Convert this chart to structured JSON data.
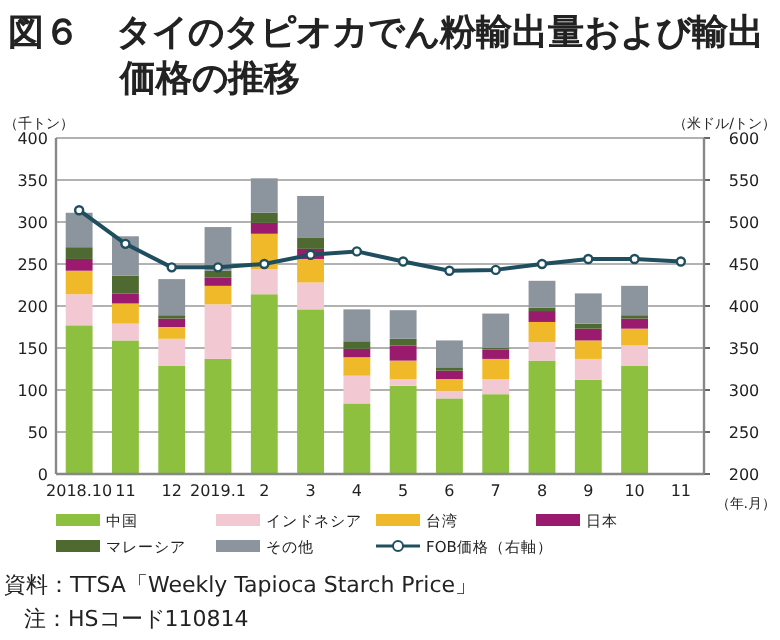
{
  "chart_data": {
    "type": "bar",
    "stacked": true,
    "title": "図６　タイのタピオカでん粉輸出量および輸出価格の推移",
    "ylabel": "（千トン）",
    "y2label": "（米ドル/トン）",
    "xlabel": "（年.月）",
    "annotations": [
      "資料：TTSA「Weekly Tapioca Starch Price」",
      "注：HSコード110814"
    ],
    "categories": [
      "2018.10",
      "11",
      "12",
      "2019.1",
      "2",
      "3",
      "4",
      "5",
      "6",
      "7",
      "8",
      "9",
      "10",
      "11"
    ],
    "ylim": [
      0,
      400
    ],
    "yticks": [
      0,
      50,
      100,
      150,
      200,
      250,
      300,
      350,
      400
    ],
    "y2lim": [
      200,
      600
    ],
    "y2ticks": [
      200,
      250,
      300,
      350,
      400,
      450,
      500,
      550,
      600
    ],
    "grid": "y",
    "legend": "bottom",
    "series": [
      {
        "name": "中国",
        "color": "#8dc03f",
        "values": [
          177,
          159,
          129,
          137,
          214,
          196,
          84,
          105,
          90,
          95,
          135,
          112,
          129,
          null
        ]
      },
      {
        "name": "インドネシア",
        "color": "#f2c9d3",
        "values": [
          37,
          20,
          32,
          65,
          30,
          32,
          33,
          8,
          9,
          18,
          22,
          25,
          24,
          null
        ]
      },
      {
        "name": "台湾",
        "color": "#f0b929",
        "values": [
          28,
          24,
          14,
          22,
          42,
          28,
          22,
          22,
          14,
          24,
          24,
          22,
          20,
          null
        ]
      },
      {
        "name": "日本",
        "color": "#9a1a6e",
        "values": [
          14,
          12,
          10,
          10,
          13,
          12,
          10,
          18,
          10,
          11,
          13,
          14,
          12,
          null
        ]
      },
      {
        "name": "マレーシア",
        "color": "#4e6a31",
        "values": [
          14,
          21,
          4,
          8,
          12,
          13,
          9,
          8,
          4,
          2,
          4,
          6,
          4,
          null
        ]
      },
      {
        "name": "その他",
        "color": "#8c959d",
        "values": [
          41,
          47,
          43,
          52,
          41,
          50,
          38,
          34,
          32,
          41,
          32,
          36,
          35,
          null
        ]
      },
      {
        "name": "FOB価格（右軸）",
        "type": "line",
        "axis": "y2",
        "marker": "circle",
        "color": "#1f4e5f",
        "values": [
          514,
          474,
          446,
          446,
          450,
          461,
          465,
          453,
          442,
          443,
          450,
          456,
          456,
          453
        ]
      }
    ]
  }
}
